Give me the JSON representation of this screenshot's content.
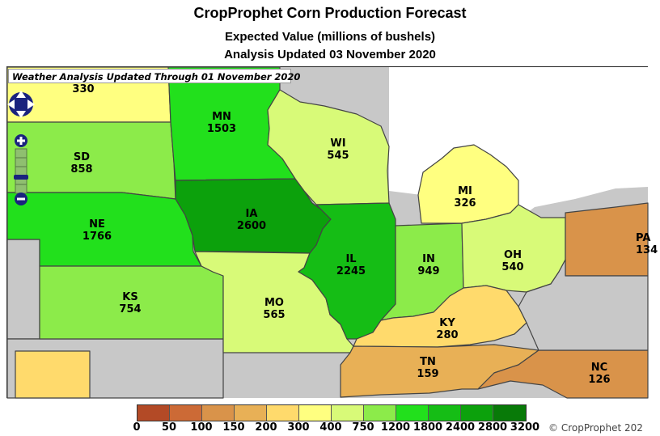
{
  "title": "CropProphet Corn Production Forecast",
  "subtitle": "Expected Value (millions of bushels)",
  "analysis_date": "Analysis Updated 03 November 2020",
  "weather_banner": "Weather Analysis Updated Through 01 November 2020",
  "map_controls": [
    "pan-control",
    "zoom-in-icon",
    "zoom-slider",
    "zoom-out-icon"
  ],
  "states": {
    "nd": {
      "abbr": "",
      "value": "330",
      "color": "#ffff80"
    },
    "sd": {
      "abbr": "SD",
      "value": "858",
      "color": "#8ceb4a"
    },
    "ne": {
      "abbr": "NE",
      "value": "1766",
      "color": "#22e01c"
    },
    "ks": {
      "abbr": "KS",
      "value": "754",
      "color": "#8ceb4a"
    },
    "mn": {
      "abbr": "MN",
      "value": "1503",
      "color": "#22e01c"
    },
    "ia": {
      "abbr": "IA",
      "value": "2600",
      "color": "#0ca10c"
    },
    "mo": {
      "abbr": "MO",
      "value": "565",
      "color": "#d8fa78"
    },
    "wi": {
      "abbr": "WI",
      "value": "545",
      "color": "#d8fa78"
    },
    "il": {
      "abbr": "IL",
      "value": "2245",
      "color": "#15bd15"
    },
    "in": {
      "abbr": "IN",
      "value": "949",
      "color": "#8ceb4a"
    },
    "mi": {
      "abbr": "MI",
      "value": "326",
      "color": "#ffff80"
    },
    "oh": {
      "abbr": "OH",
      "value": "540",
      "color": "#d8fa78"
    },
    "ky": {
      "abbr": "KY",
      "value": "280",
      "color": "#ffda6c"
    },
    "tn": {
      "abbr": "TN",
      "value": "159",
      "color": "#e8b056"
    },
    "nc": {
      "abbr": "NC",
      "value": "126",
      "color": "#d9934a"
    },
    "pa": {
      "abbr": "PA",
      "value": "134",
      "color": "#d9934a"
    }
  },
  "legend": {
    "ticks": [
      "0",
      "50",
      "100",
      "150",
      "200",
      "300",
      "400",
      "750",
      "1200",
      "1800",
      "2400",
      "2800",
      "3200"
    ],
    "colors": [
      "#b34a26",
      "#cc6a36",
      "#d9934a",
      "#e8b056",
      "#ffda6c",
      "#ffff80",
      "#d8fa78",
      "#8ceb4a",
      "#22e01c",
      "#15bd15",
      "#0ca10c",
      "#087a08"
    ]
  },
  "copyright": "© CropProphet 202"
}
